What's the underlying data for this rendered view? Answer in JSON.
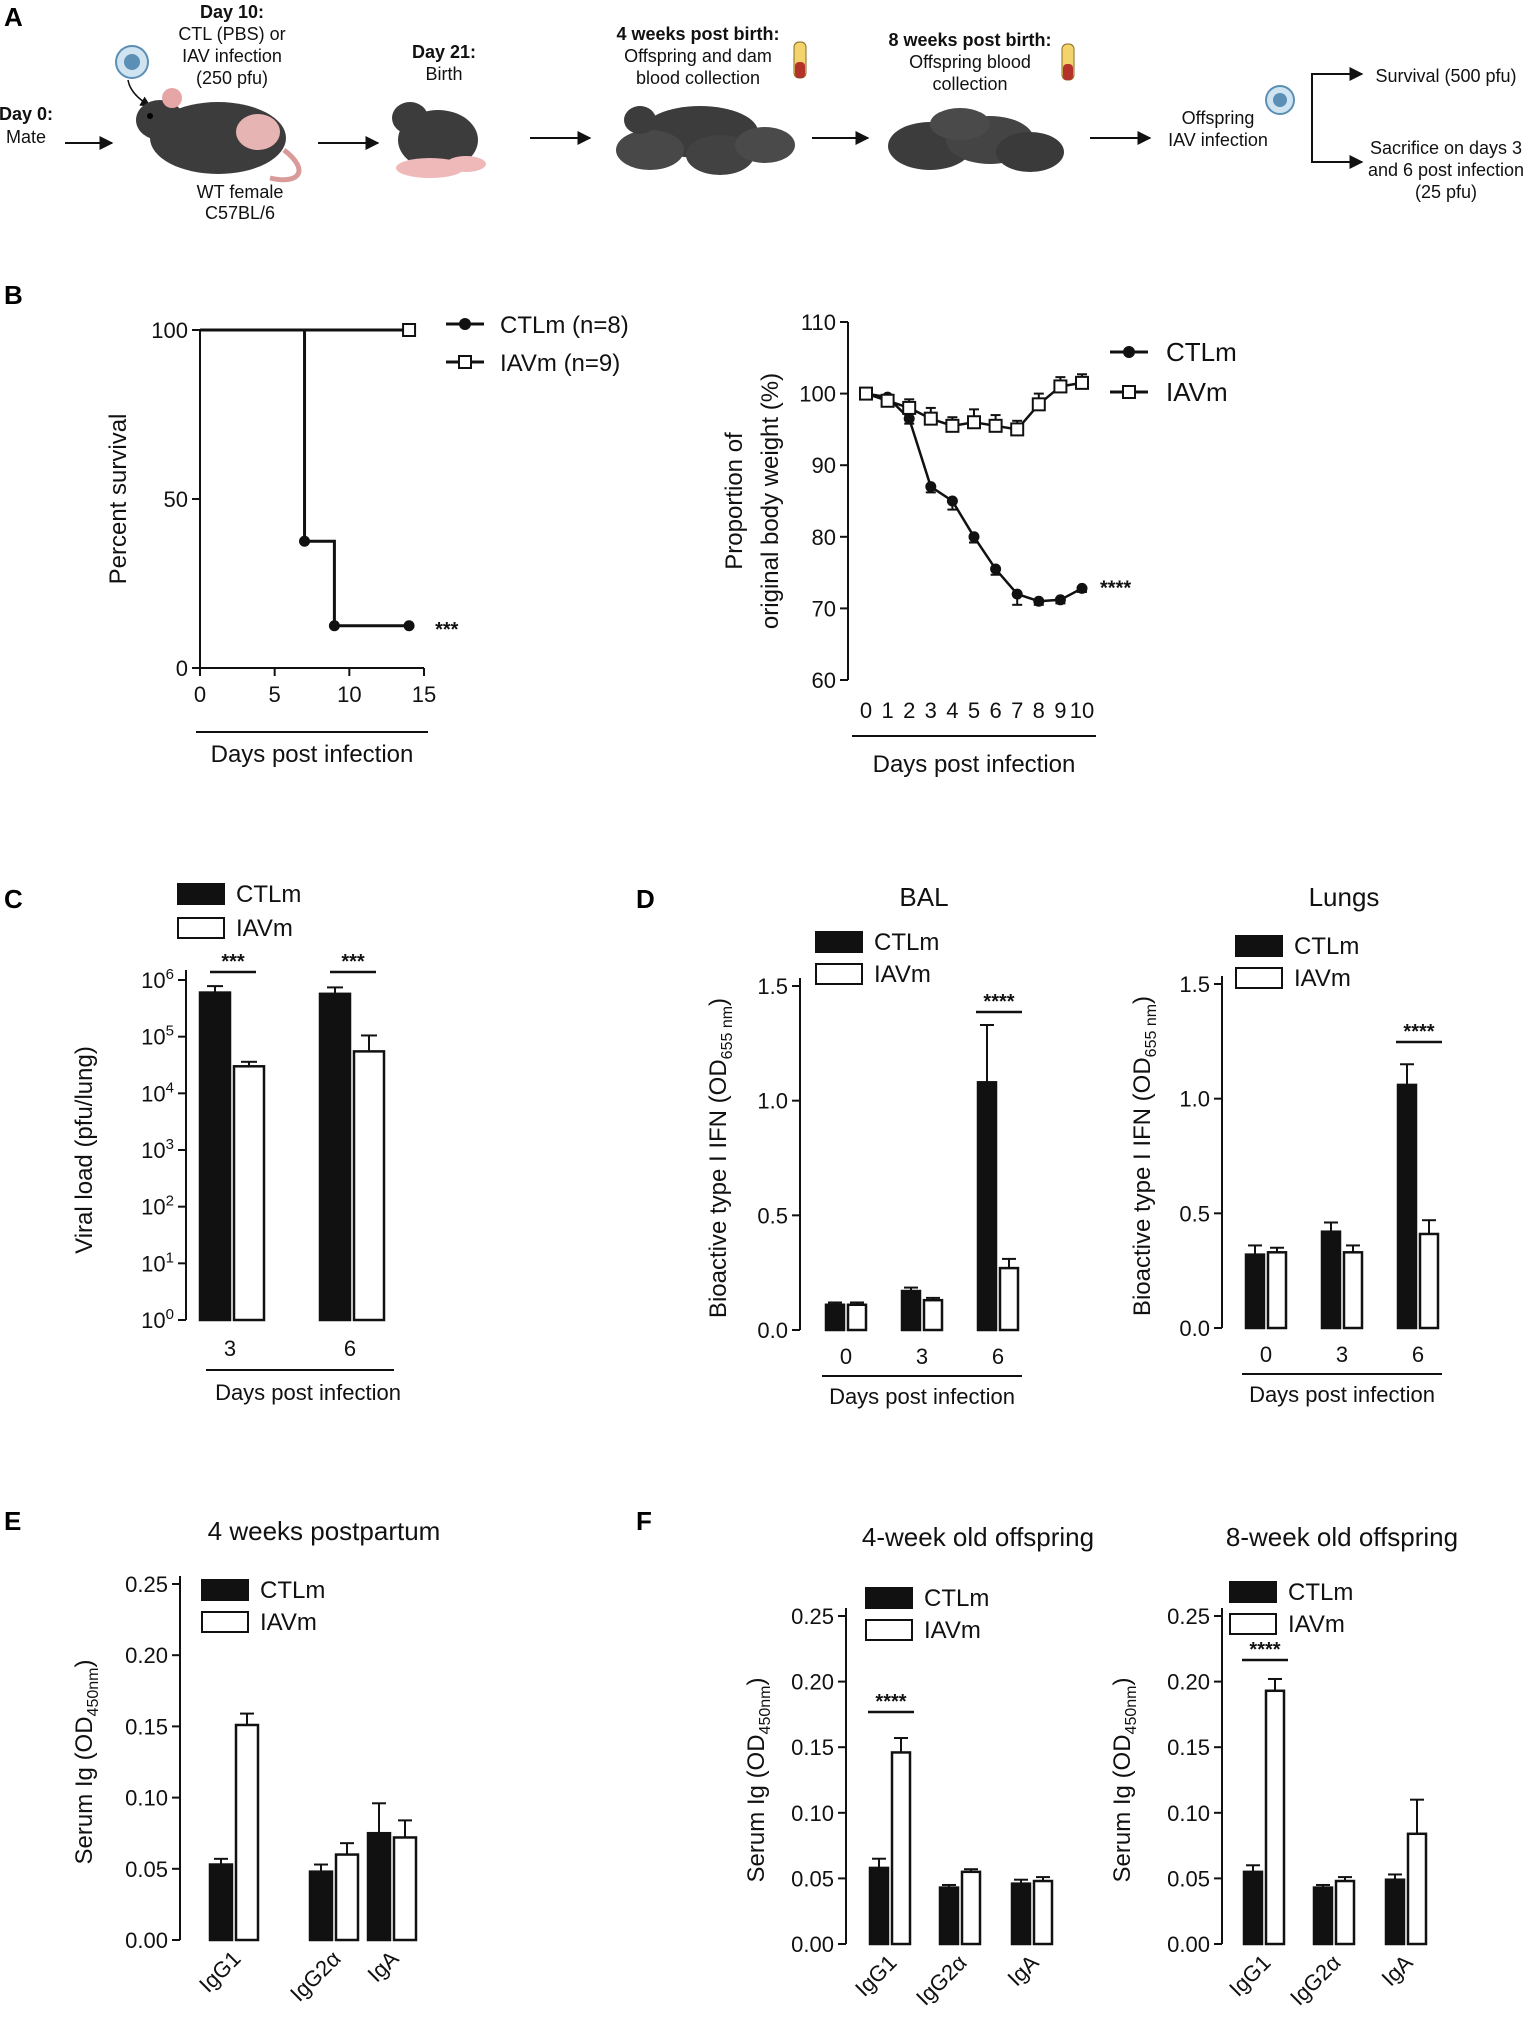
{
  "panels": {
    "A": "A",
    "B": "B",
    "C": "C",
    "D": "D",
    "E": "E",
    "F": "F"
  },
  "colors": {
    "ctl": "#111111",
    "iav": "#ffffff",
    "mouse": "#3c3c3c",
    "virus": "#7fb3d0"
  },
  "schematic": {
    "day0_title": "Day 0:",
    "day0_text": "Mate",
    "day10_title": "Day 10:",
    "day10_line1": "CTL (PBS) or",
    "day10_line2": "IAV infection",
    "day10_line3": "(250 pfu)",
    "female_line1": "WT female",
    "female_line2": "C57BL/6",
    "day21_title": "Day 21:",
    "day21_text": "Birth",
    "w4_title": "4 weeks post birth:",
    "w4_line1": "Offspring and dam",
    "w4_line2": "blood collection",
    "w8_title": "8 weeks post birth:",
    "w8_line1": "Offspring blood",
    "w8_line2": "collection",
    "inf_line1": "Offspring",
    "inf_line2": "IAV infection",
    "survival": "Survival (500 pfu)",
    "sac_line1": "Sacrifice on days 3",
    "sac_line2": "and 6 post infection",
    "sac_line3": "(25 pfu)"
  },
  "chart_data": [
    {
      "id": "B-survival",
      "type": "line",
      "ylabel": "Percent survival",
      "xlabel": "Days post infection",
      "xlim": [
        0,
        15
      ],
      "ylim": [
        0,
        100
      ],
      "xticks": [
        "0",
        "5",
        "10",
        "15"
      ],
      "yticks": [
        "0",
        "50",
        "100"
      ],
      "series": [
        {
          "name": "CTLm (n=8)",
          "x": [
            0,
            7,
            9,
            14
          ],
          "y": [
            100,
            37.5,
            12.5,
            12.5
          ]
        },
        {
          "name": "IAVm (n=9)",
          "x": [
            0,
            14
          ],
          "y": [
            100,
            100
          ]
        }
      ],
      "significance": "***"
    },
    {
      "id": "B-weight",
      "type": "line",
      "ylabel_line1": "Proportion of",
      "ylabel_line2": "original body weight  (%)",
      "xlabel": "Days post infection",
      "xlim": [
        0,
        10
      ],
      "ylim": [
        60,
        110
      ],
      "xticks": [
        "0",
        "1",
        "2",
        "3",
        "4",
        "5",
        "6",
        "7",
        "8",
        "9",
        "10"
      ],
      "yticks": [
        "60",
        "70",
        "80",
        "90",
        "100",
        "110"
      ],
      "series": [
        {
          "name": "CTLm",
          "x": [
            0,
            1,
            2,
            3,
            4,
            5,
            6,
            7,
            8,
            9,
            10
          ],
          "y": [
            100,
            99.5,
            96.5,
            87,
            85,
            80,
            75.5,
            72,
            71,
            71.2,
            72.8
          ],
          "err": [
            0.3,
            0.5,
            0.7,
            0.8,
            1.2,
            0.8,
            0.8,
            1.5,
            0.5,
            0.5,
            0.5
          ]
        },
        {
          "name": "IAVm",
          "x": [
            0,
            1,
            2,
            3,
            4,
            5,
            6,
            7,
            8,
            9,
            10
          ],
          "y": [
            100,
            99,
            98,
            96.5,
            95.5,
            96,
            95.5,
            95,
            98.5,
            101,
            101.5
          ],
          "err": [
            0.3,
            0.5,
            1.2,
            1.5,
            1.2,
            1.8,
            1.5,
            1.2,
            1.5,
            1.3,
            1.2
          ]
        }
      ],
      "significance": "****"
    },
    {
      "id": "C-viral",
      "type": "bar",
      "scale": "log",
      "ylabel": "Viral load (pfu/lung)",
      "xlabel": "Days post infection",
      "categories": [
        "3",
        "6"
      ],
      "ylim_log10": [
        0,
        6
      ],
      "yticks": [
        "0",
        "1",
        "2",
        "3",
        "4",
        "5",
        "6"
      ],
      "series": [
        {
          "name": "CTLm",
          "values": [
            600000,
            570000
          ],
          "err": [
            180000,
            170000
          ]
        },
        {
          "name": "IAVm",
          "values": [
            30000,
            55000
          ],
          "err": [
            6000,
            50000
          ]
        }
      ],
      "significance": [
        "***",
        "***"
      ]
    },
    {
      "id": "D-BAL",
      "type": "bar",
      "title": "BAL",
      "ylabel": "Bioactive type I IFN (OD",
      "ylabel_sub": "655 nm",
      "ylabel_end": ")",
      "xlabel": "Days post infection",
      "categories": [
        "0",
        "3",
        "6"
      ],
      "ylim": [
        0,
        1.5
      ],
      "yticks": [
        "0.0",
        "0.5",
        "1.0",
        "1.5"
      ],
      "series": [
        {
          "name": "CTLm",
          "values": [
            0.11,
            0.17,
            1.08
          ],
          "err": [
            0.01,
            0.015,
            0.25
          ]
        },
        {
          "name": "IAVm",
          "values": [
            0.11,
            0.13,
            0.27
          ],
          "err": [
            0.01,
            0.01,
            0.04
          ]
        }
      ],
      "significance": {
        "category": "6",
        "label": "****"
      }
    },
    {
      "id": "D-Lungs",
      "type": "bar",
      "title": "Lungs",
      "ylabel": "Bioactive type I IFN (OD",
      "ylabel_sub": "655 nm",
      "ylabel_end": ")",
      "xlabel": "Days post infection",
      "categories": [
        "0",
        "3",
        "6"
      ],
      "ylim": [
        0,
        1.5
      ],
      "yticks": [
        "0.0",
        "0.5",
        "1.0",
        "1.5"
      ],
      "series": [
        {
          "name": "CTLm",
          "values": [
            0.32,
            0.42,
            1.06
          ],
          "err": [
            0.04,
            0.04,
            0.09
          ]
        },
        {
          "name": "IAVm",
          "values": [
            0.33,
            0.33,
            0.41
          ],
          "err": [
            0.02,
            0.03,
            0.06
          ]
        }
      ],
      "significance": {
        "category": "6",
        "label": "****"
      }
    },
    {
      "id": "E-dam",
      "type": "bar",
      "title": "4 weeks postpartum",
      "ylabel": "Serum Ig (OD",
      "ylabel_sub": "450nm",
      "ylabel_end": ")",
      "categories": [
        "IgG1",
        "IgG2α",
        "IgA"
      ],
      "ylim": [
        0,
        0.25
      ],
      "yticks": [
        "0.00",
        "0.05",
        "0.10",
        "0.15",
        "0.20",
        "0.25"
      ],
      "series": [
        {
          "name": "CTLm",
          "values": [
            0.053,
            0.048,
            0.075
          ],
          "err": [
            0.004,
            0.005,
            0.021
          ]
        },
        {
          "name": "IAVm",
          "values": [
            0.151,
            0.06,
            0.072
          ],
          "err": [
            0.008,
            0.008,
            0.012
          ]
        }
      ]
    },
    {
      "id": "F-4wk",
      "type": "bar",
      "title": "4-week old offspring",
      "ylabel": "Serum Ig (OD",
      "ylabel_sub": "450nm",
      "ylabel_end": ")",
      "categories": [
        "IgG1",
        "IgG2α",
        "IgA"
      ],
      "ylim": [
        0,
        0.25
      ],
      "yticks": [
        "0.00",
        "0.05",
        "0.10",
        "0.15",
        "0.20",
        "0.25"
      ],
      "series": [
        {
          "name": "CTLm",
          "values": [
            0.058,
            0.043,
            0.046
          ],
          "err": [
            0.007,
            0.002,
            0.003
          ]
        },
        {
          "name": "IAVm",
          "values": [
            0.146,
            0.055,
            0.048
          ],
          "err": [
            0.011,
            0.002,
            0.003
          ]
        }
      ],
      "significance": {
        "category": "IgG1",
        "label": "****"
      }
    },
    {
      "id": "F-8wk",
      "type": "bar",
      "title": "8-week old offspring",
      "ylabel": "Serum Ig (OD",
      "ylabel_sub": "450nm",
      "ylabel_end": ")",
      "categories": [
        "IgG1",
        "IgG2α",
        "IgA"
      ],
      "ylim": [
        0,
        0.25
      ],
      "yticks": [
        "0.00",
        "0.05",
        "0.10",
        "0.15",
        "0.20",
        "0.25"
      ],
      "series": [
        {
          "name": "CTLm",
          "values": [
            0.055,
            0.043,
            0.049
          ],
          "err": [
            0.005,
            0.002,
            0.004
          ]
        },
        {
          "name": "IAVm",
          "values": [
            0.193,
            0.048,
            0.084
          ],
          "err": [
            0.009,
            0.003,
            0.026
          ]
        }
      ],
      "significance": {
        "category": "IgG1",
        "label": "****"
      }
    }
  ]
}
